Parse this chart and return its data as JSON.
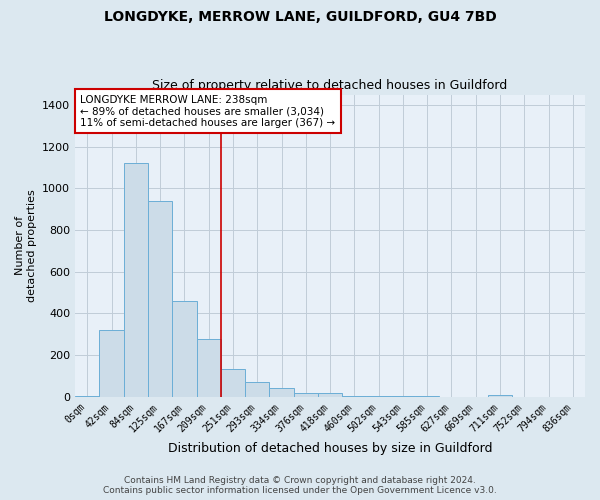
{
  "title": "LONGDYKE, MERROW LANE, GUILDFORD, GU4 7BD",
  "subtitle": "Size of property relative to detached houses in Guildford",
  "xlabel": "Distribution of detached houses by size in Guildford",
  "ylabel": "Number of\ndetached properties",
  "footer_line1": "Contains HM Land Registry data © Crown copyright and database right 2024.",
  "footer_line2": "Contains public sector information licensed under the Open Government Licence v3.0.",
  "bin_labels": [
    "0sqm",
    "42sqm",
    "84sqm",
    "125sqm",
    "167sqm",
    "209sqm",
    "251sqm",
    "293sqm",
    "334sqm",
    "376sqm",
    "418sqm",
    "460sqm",
    "502sqm",
    "543sqm",
    "585sqm",
    "627sqm",
    "669sqm",
    "711sqm",
    "752sqm",
    "794sqm",
    "836sqm"
  ],
  "bar_values": [
    5,
    320,
    1120,
    940,
    460,
    275,
    135,
    70,
    40,
    20,
    20,
    5,
    5,
    3,
    3,
    0,
    0,
    8,
    0,
    0,
    0
  ],
  "bar_color": "#ccdce8",
  "bar_edge_color": "#6baed6",
  "red_line_x": 5.5,
  "annotation_title": "LONGDYKE MERROW LANE: 238sqm",
  "annotation_line1": "← 89% of detached houses are smaller (3,034)",
  "annotation_line2": "11% of semi-detached houses are larger (367) →",
  "vline_color": "#cc0000",
  "annotation_box_color": "#ffffff",
  "annotation_box_edge_color": "#cc0000",
  "ylim": [
    0,
    1450
  ],
  "background_color": "#dce8f0",
  "plot_bg_color": "#e8f0f8",
  "grid_color": "#c0ccd8"
}
